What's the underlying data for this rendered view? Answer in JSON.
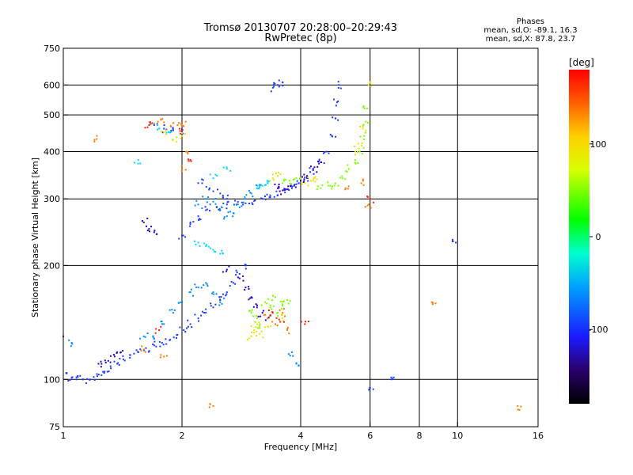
{
  "header": {
    "title": "Tromsø 20130707 20:28:00–20:29:43",
    "subtitle": "RwPretec (8p)"
  },
  "stats": {
    "heading": "Phases",
    "line_o": "mean, sd,O: -89.1, 16.3",
    "line_x": "mean, sd,X: 87.8, 23.7"
  },
  "chart_data": {
    "type": "scatter",
    "xlabel": "Frequency [MHz]",
    "ylabel": "Stationary phase Virtual Height [km]",
    "x_scale": "log",
    "y_scale": "log",
    "xlim": [
      1,
      16
    ],
    "ylim": [
      75,
      750
    ],
    "x_ticks": [
      1,
      2,
      4,
      6,
      8,
      10,
      16
    ],
    "x_ticklabels": [
      "1",
      "2",
      "4",
      "6",
      "8",
      "10",
      "16"
    ],
    "x_gridlines": [
      2,
      4,
      6,
      8,
      10
    ],
    "y_ticks": [
      75,
      100,
      200,
      300,
      400,
      500,
      600,
      750
    ],
    "y_ticklabels": [
      "75",
      "100",
      "200",
      "300",
      "400",
      "500",
      "600",
      "750"
    ],
    "y_gridlines": [
      100,
      200,
      300,
      400,
      500,
      600
    ],
    "colorbar": {
      "label": "[deg]",
      "range": [
        -180,
        180
      ],
      "ticks": [
        100,
        0,
        -100
      ],
      "ticklabels": [
        "100",
        "0",
        "-100"
      ],
      "colormap": "rainbow"
    },
    "series": [
      {
        "phase": -100,
        "color": "#1a3cff",
        "points": [
          [
            1.02,
            104
          ],
          [
            1.05,
            101
          ],
          [
            1.08,
            100
          ],
          [
            1.12,
            100
          ],
          [
            1.17,
            100
          ],
          [
            1.22,
            102
          ],
          [
            1.27,
            104
          ],
          [
            1.32,
            107
          ],
          [
            1.37,
            110
          ],
          [
            1.42,
            113
          ],
          [
            1.48,
            116
          ],
          [
            1.55,
            118
          ],
          [
            1.62,
            121
          ],
          [
            1.7,
            123
          ],
          [
            1.78,
            125
          ],
          [
            1.86,
            127
          ],
          [
            1.94,
            131
          ],
          [
            2.02,
            135
          ],
          [
            2.1,
            140
          ],
          [
            2.2,
            145
          ],
          [
            2.3,
            150
          ],
          [
            2.4,
            155
          ],
          [
            2.5,
            162
          ],
          [
            2.6,
            170
          ],
          [
            2.7,
            180
          ],
          [
            2.8,
            190
          ],
          [
            2.9,
            200
          ],
          [
            2.0,
            240
          ],
          [
            2.1,
            260
          ],
          [
            2.2,
            270
          ],
          [
            2.3,
            280
          ],
          [
            2.45,
            285
          ],
          [
            2.6,
            290
          ],
          [
            2.75,
            290
          ],
          [
            2.9,
            292
          ],
          [
            3.05,
            296
          ],
          [
            3.2,
            300
          ],
          [
            3.35,
            303
          ],
          [
            3.5,
            307
          ],
          [
            3.65,
            312
          ],
          [
            3.8,
            320
          ],
          [
            3.95,
            330
          ],
          [
            4.1,
            342
          ],
          [
            4.3,
            357
          ],
          [
            4.5,
            375
          ],
          [
            4.65,
            400
          ],
          [
            4.8,
            440
          ],
          [
            4.9,
            490
          ],
          [
            4.95,
            540
          ],
          [
            5.0,
            600
          ],
          [
            1.7,
            470
          ],
          [
            1.8,
            460
          ],
          [
            1.9,
            455
          ],
          [
            2.0,
            450
          ],
          [
            2.25,
            330
          ],
          [
            2.35,
            320
          ],
          [
            2.5,
            310
          ],
          [
            2.6,
            300
          ],
          [
            3.4,
            590
          ],
          [
            3.5,
            600
          ],
          [
            3.6,
            610
          ],
          [
            9.9,
            230
          ],
          [
            1.0,
            130
          ],
          [
            6.0,
            95
          ],
          [
            6.8,
            100
          ]
        ]
      },
      {
        "phase": -120,
        "color": "#2a00cc",
        "points": [
          [
            1.25,
            110
          ],
          [
            1.3,
            112
          ],
          [
            1.35,
            115
          ],
          [
            1.4,
            118
          ],
          [
            2.6,
            195
          ],
          [
            2.8,
            185
          ],
          [
            2.9,
            175
          ],
          [
            3.0,
            165
          ],
          [
            3.1,
            155
          ],
          [
            3.2,
            150
          ],
          [
            3.3,
            145
          ],
          [
            3.5,
            320
          ],
          [
            3.6,
            316
          ],
          [
            3.7,
            318
          ],
          [
            3.85,
            325
          ],
          [
            4.0,
            335
          ],
          [
            4.15,
            345
          ],
          [
            4.3,
            360
          ],
          [
            4.45,
            372
          ],
          [
            1.6,
            260
          ],
          [
            1.65,
            250
          ],
          [
            1.7,
            245
          ]
        ]
      },
      {
        "phase": -70,
        "color": "#008cff",
        "points": [
          [
            1.6,
            130
          ],
          [
            1.7,
            128
          ],
          [
            1.8,
            140
          ],
          [
            1.9,
            150
          ],
          [
            2.0,
            160
          ],
          [
            2.1,
            170
          ],
          [
            2.2,
            175
          ],
          [
            2.3,
            180
          ],
          [
            2.4,
            170
          ],
          [
            2.5,
            160
          ],
          [
            2.2,
            290
          ],
          [
            2.3,
            300
          ],
          [
            2.4,
            295
          ],
          [
            2.5,
            280
          ],
          [
            2.6,
            270
          ],
          [
            2.7,
            275
          ],
          [
            2.8,
            285
          ],
          [
            2.9,
            300
          ],
          [
            3.0,
            310
          ],
          [
            3.1,
            320
          ],
          [
            1.05,
            125
          ],
          [
            3.9,
            110
          ],
          [
            3.8,
            118
          ]
        ]
      },
      {
        "phase": -40,
        "color": "#00d8ff",
        "points": [
          [
            2.2,
            230
          ],
          [
            2.3,
            225
          ],
          [
            2.4,
            220
          ],
          [
            2.5,
            215
          ],
          [
            3.1,
            320
          ],
          [
            3.2,
            325
          ],
          [
            3.3,
            330
          ],
          [
            1.55,
            380
          ],
          [
            2.4,
            340
          ],
          [
            2.6,
            360
          ],
          [
            1.75,
            460
          ],
          [
            1.85,
            450
          ]
        ]
      },
      {
        "phase": 60,
        "color": "#7cff00",
        "points": [
          [
            3.0,
            150
          ],
          [
            3.1,
            145
          ],
          [
            3.15,
            140
          ],
          [
            3.25,
            160
          ],
          [
            3.35,
            155
          ],
          [
            3.45,
            165
          ],
          [
            3.5,
            150
          ],
          [
            3.6,
            158
          ],
          [
            3.7,
            162
          ],
          [
            4.5,
            320
          ],
          [
            4.7,
            325
          ],
          [
            4.9,
            330
          ],
          [
            5.1,
            340
          ],
          [
            5.3,
            360
          ],
          [
            5.5,
            380
          ],
          [
            5.65,
            400
          ],
          [
            5.8,
            440
          ],
          [
            5.85,
            480
          ],
          [
            5.9,
            520
          ],
          [
            3.6,
            330
          ],
          [
            3.75,
            335
          ],
          [
            3.9,
            340
          ]
        ]
      },
      {
        "phase": 100,
        "color": "#f0e000",
        "points": [
          [
            3.0,
            130
          ],
          [
            3.05,
            135
          ],
          [
            3.1,
            140
          ],
          [
            3.15,
            132
          ],
          [
            3.3,
            138
          ],
          [
            3.6,
            145
          ],
          [
            4.1,
            330
          ],
          [
            4.25,
            335
          ],
          [
            4.4,
            338
          ],
          [
            5.5,
            400
          ],
          [
            5.6,
            420
          ],
          [
            5.75,
            460
          ],
          [
            5.95,
            600
          ],
          [
            1.8,
            450
          ],
          [
            1.9,
            430
          ],
          [
            2.0,
            440
          ],
          [
            3.4,
            340
          ],
          [
            3.5,
            345
          ]
        ]
      },
      {
        "phase": 150,
        "color": "#ff7a00",
        "points": [
          [
            1.7,
            475
          ],
          [
            1.8,
            478
          ],
          [
            1.9,
            476
          ],
          [
            2.0,
            474
          ],
          [
            1.95,
            470
          ],
          [
            2.05,
            400
          ],
          [
            3.3,
            145
          ],
          [
            3.45,
            140
          ],
          [
            3.6,
            150
          ],
          [
            3.7,
            135
          ],
          [
            2.0,
            360
          ],
          [
            1.2,
            430
          ],
          [
            5.2,
            320
          ],
          [
            5.95,
            290
          ],
          [
            5.7,
            330
          ],
          [
            2.4,
            85
          ],
          [
            8.6,
            160
          ],
          [
            14.2,
            85
          ],
          [
            1.6,
            120
          ],
          [
            1.8,
            115
          ]
        ]
      },
      {
        "phase": 175,
        "color": "#ff2000",
        "points": [
          [
            1.65,
            470
          ],
          [
            2.0,
            455
          ],
          [
            3.4,
            150
          ],
          [
            3.55,
            142
          ],
          [
            2.1,
            380
          ],
          [
            1.75,
            135
          ],
          [
            4.1,
            140
          ],
          [
            6.0,
            300
          ]
        ]
      }
    ]
  }
}
